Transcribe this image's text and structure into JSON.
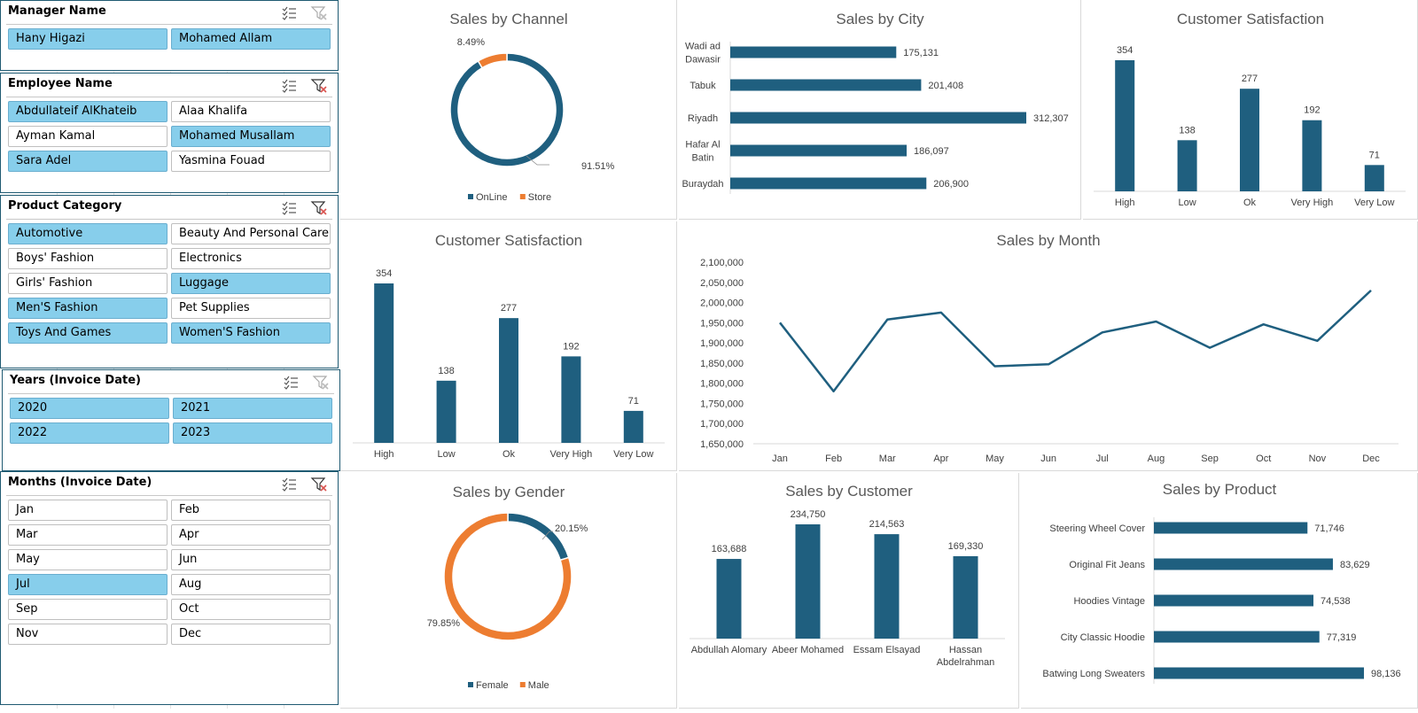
{
  "colors": {
    "bar": "#1f5f7f",
    "accent": "#ed7d31",
    "selected": "#87ceeb",
    "axis": "#d9d9d9",
    "title": "#595959",
    "label": "#404040"
  },
  "icons": [
    "multi-select-icon",
    "clear-filter-icon"
  ],
  "slicers": [
    {
      "title": "Manager Name",
      "filtered": false,
      "items": [
        {
          "label": "Hany Higazi",
          "selected": true
        },
        {
          "label": "Mohamed Allam",
          "selected": true
        }
      ]
    },
    {
      "title": "Employee Name",
      "filtered": true,
      "items": [
        {
          "label": "Abdullateif AlKhateib",
          "selected": true
        },
        {
          "label": "Alaa Khalifa",
          "selected": false
        },
        {
          "label": "Ayman Kamal",
          "selected": false
        },
        {
          "label": "Mohamed Musallam",
          "selected": true
        },
        {
          "label": "Sara Adel",
          "selected": true
        },
        {
          "label": "Yasmina Fouad",
          "selected": false
        }
      ]
    },
    {
      "title": "Product Category",
      "filtered": true,
      "items": [
        {
          "label": "Automotive",
          "selected": true
        },
        {
          "label": "Beauty And Personal Care",
          "selected": false
        },
        {
          "label": "Boys' Fashion",
          "selected": false
        },
        {
          "label": "Electronics",
          "selected": false
        },
        {
          "label": "Girls' Fashion",
          "selected": false
        },
        {
          "label": "Luggage",
          "selected": true
        },
        {
          "label": "Men'S Fashion",
          "selected": true
        },
        {
          "label": "Pet Supplies",
          "selected": false
        },
        {
          "label": "Toys And Games",
          "selected": true
        },
        {
          "label": "Women'S Fashion",
          "selected": true
        }
      ]
    },
    {
      "title": "Years (Invoice Date)",
      "filtered": false,
      "items": [
        {
          "label": "2020",
          "selected": true
        },
        {
          "label": "2021",
          "selected": true
        },
        {
          "label": "2022",
          "selected": true
        },
        {
          "label": "2023",
          "selected": true
        }
      ]
    },
    {
      "title": "Months (Invoice Date)",
      "filtered": true,
      "items": [
        {
          "label": "Jan",
          "selected": false
        },
        {
          "label": "Feb",
          "selected": false
        },
        {
          "label": "Mar",
          "selected": false
        },
        {
          "label": "Apr",
          "selected": false
        },
        {
          "label": "May",
          "selected": false
        },
        {
          "label": "Jun",
          "selected": false
        },
        {
          "label": "Jul",
          "selected": true
        },
        {
          "label": "Aug",
          "selected": false
        },
        {
          "label": "Sep",
          "selected": false
        },
        {
          "label": "Oct",
          "selected": false
        },
        {
          "label": "Nov",
          "selected": false
        },
        {
          "label": "Dec",
          "selected": false
        }
      ]
    }
  ],
  "chart_data": [
    {
      "id": "channel",
      "type": "pie",
      "title": "Sales by Channel",
      "slices": [
        {
          "name": "OnLine",
          "value": 91.51,
          "label": "91.51%",
          "color": "#1f5f7f"
        },
        {
          "name": "Store",
          "value": 8.49,
          "label": "8.49%",
          "color": "#ed7d31"
        }
      ],
      "legend": "bottom"
    },
    {
      "id": "city",
      "type": "bar",
      "orientation": "horizontal",
      "title": "Sales by City",
      "categories": [
        "Wadi ad Dawasir",
        "Tabuk",
        "Riyadh",
        "Hafar Al Batin",
        "Buraydah"
      ],
      "values": [
        175131,
        201408,
        312307,
        186097,
        206900
      ],
      "value_labels": [
        "175,131",
        "201,408",
        "312,307",
        "186,097",
        "206,900"
      ]
    },
    {
      "id": "satisfaction-top",
      "type": "bar",
      "title": "Customer Satisfaction",
      "categories": [
        "High",
        "Low",
        "Ok",
        "Very High",
        "Very Low"
      ],
      "values": [
        354,
        138,
        277,
        192,
        71
      ]
    },
    {
      "id": "satisfaction-mid",
      "type": "bar",
      "title": "Customer Satisfaction",
      "categories": [
        "High",
        "Low",
        "Ok",
        "Very High",
        "Very Low"
      ],
      "values": [
        354,
        138,
        277,
        192,
        71
      ]
    },
    {
      "id": "month",
      "type": "line",
      "title": "Sales by Month",
      "categories": [
        "Jan",
        "Feb",
        "Mar",
        "Apr",
        "May",
        "Jun",
        "Jul",
        "Aug",
        "Sep",
        "Oct",
        "Nov",
        "Dec"
      ],
      "values": [
        1950000,
        1780000,
        1958000,
        1975000,
        1842000,
        1847000,
        1926000,
        1953000,
        1888000,
        1946000,
        1905000,
        2030000
      ],
      "ylim": [
        1650000,
        2100000
      ],
      "yticks": [
        "2,100,000",
        "2,050,000",
        "2,000,000",
        "1,950,000",
        "1,900,000",
        "1,850,000",
        "1,800,000",
        "1,750,000",
        "1,700,000",
        "1,650,000"
      ]
    },
    {
      "id": "gender",
      "type": "pie",
      "title": "Sales by Gender",
      "slices": [
        {
          "name": "Female",
          "value": 20.15,
          "label": "20.15%",
          "color": "#1f5f7f"
        },
        {
          "name": "Male",
          "value": 79.85,
          "label": "79.85%",
          "color": "#ed7d31"
        }
      ],
      "legend": "bottom"
    },
    {
      "id": "customer",
      "type": "bar",
      "title": "Sales by Customer",
      "categories": [
        "Abdullah Alomary",
        "Abeer Mohamed",
        "Essam Elsayad",
        "Hassan Abdelrahman"
      ],
      "values": [
        163688,
        234750,
        214563,
        169330
      ],
      "value_labels": [
        "163,688",
        "234,750",
        "214,563",
        "169,330"
      ]
    },
    {
      "id": "product",
      "type": "bar",
      "orientation": "horizontal",
      "title": "Sales by Product",
      "categories": [
        "Steering Wheel Cover",
        "Original Fit Jeans",
        "Hoodies Vintage",
        "City Classic Hoodie",
        "Batwing Long Sweaters"
      ],
      "values": [
        71746,
        83629,
        74538,
        77319,
        98136
      ],
      "value_labels": [
        "71,746",
        "83,629",
        "74,538",
        "77,319",
        "98,136"
      ]
    }
  ]
}
